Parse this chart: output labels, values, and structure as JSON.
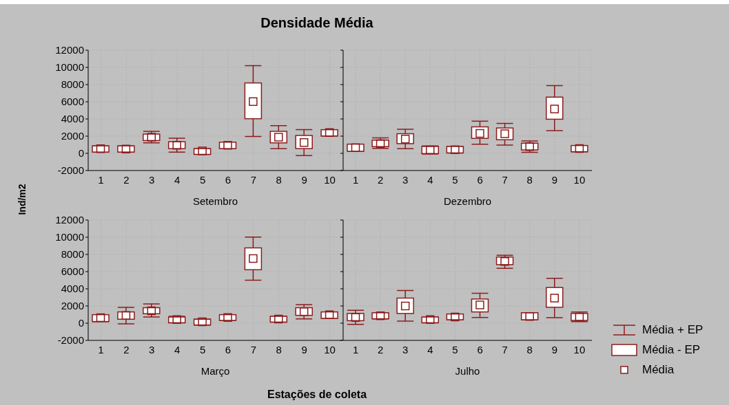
{
  "chart_data": [
    {
      "type": "box",
      "title": "Densidade Média",
      "ylabel": "Ind/m2",
      "xlabel": "Setembro",
      "annotations": [
        "Estações de coleta"
      ],
      "color": "#8c1c1c",
      "grid": true,
      "ylim": [
        -2000,
        12000
      ],
      "yticks": [
        -2000,
        0,
        2000,
        4000,
        6000,
        8000,
        10000,
        12000
      ],
      "categories": [
        "1",
        "2",
        "3",
        "4",
        "5",
        "6",
        "7",
        "8",
        "9",
        "10"
      ],
      "boxes": [
        {
          "low": 150,
          "q1": 150,
          "median": 550,
          "q3": 870,
          "high": 870
        },
        {
          "low": 150,
          "q1": 150,
          "median": 500,
          "q3": 870,
          "high": 870
        },
        {
          "low": 1220,
          "q1": 1490,
          "median": 1890,
          "q3": 2240,
          "high": 2560
        },
        {
          "low": 150,
          "q1": 550,
          "median": 950,
          "q3": 1350,
          "high": 1760
        },
        {
          "low": -120,
          "q1": -120,
          "median": 280,
          "q3": 550,
          "high": 550
        },
        {
          "low": 550,
          "q1": 550,
          "median": 950,
          "q3": 1300,
          "high": 1300
        },
        {
          "low": 1970,
          "q1": 4030,
          "median": 6020,
          "q3": 8190,
          "high": 10200
        },
        {
          "low": 550,
          "q1": 1220,
          "median": 1890,
          "q3": 2560,
          "high": 3230
        },
        {
          "low": -250,
          "q1": 550,
          "median": 1270,
          "q3": 2080,
          "high": 2770
        },
        {
          "low": 2020,
          "q1": 2020,
          "median": 2420,
          "q3": 2750,
          "high": 2750
        }
      ]
    },
    {
      "type": "box",
      "xlabel": "Dezembro",
      "color": "#8c1c1c",
      "grid": true,
      "tick_labels": "x",
      "ylim": [
        -2000,
        12000
      ],
      "yticks": [
        -2000,
        0,
        2000,
        4000,
        6000,
        8000,
        10000,
        12000
      ],
      "categories": [
        "1",
        "2",
        "3",
        "4",
        "5",
        "6",
        "7",
        "8",
        "9",
        "10"
      ],
      "boxes": [
        {
          "low": 240,
          "q1": 240,
          "median": 670,
          "q3": 1070,
          "high": 1070
        },
        {
          "low": 590,
          "q1": 780,
          "median": 1130,
          "q3": 1530,
          "high": 1800
        },
        {
          "low": 540,
          "q1": 1130,
          "median": 1660,
          "q3": 2280,
          "high": 2810
        },
        {
          "low": -80,
          "q1": -30,
          "median": 400,
          "q3": 800,
          "high": 860
        },
        {
          "low": 50,
          "q1": 50,
          "median": 430,
          "q3": 800,
          "high": 800
        },
        {
          "low": 1070,
          "q1": 1740,
          "median": 2330,
          "q3": 3080,
          "high": 3750
        },
        {
          "low": 960,
          "q1": 1580,
          "median": 2280,
          "q3": 2950,
          "high": 3480
        },
        {
          "low": 130,
          "q1": 400,
          "median": 780,
          "q3": 1180,
          "high": 1450
        },
        {
          "low": 2650,
          "q1": 3970,
          "median": 5170,
          "q3": 6540,
          "high": 7880
        },
        {
          "low": 190,
          "q1": 190,
          "median": 560,
          "q3": 910,
          "high": 910
        }
      ]
    },
    {
      "type": "box",
      "xlabel": "Março",
      "color": "#8c1c1c",
      "grid": true,
      "ylim": [
        -2000,
        12000
      ],
      "yticks": [
        -2000,
        0,
        2000,
        4000,
        6000,
        8000,
        10000,
        12000
      ],
      "categories": [
        "1",
        "2",
        "3",
        "4",
        "5",
        "6",
        "7",
        "8",
        "9",
        "10"
      ],
      "boxes": [
        {
          "low": 190,
          "q1": 190,
          "median": 640,
          "q3": 990,
          "high": 990
        },
        {
          "low": -80,
          "q1": 460,
          "median": 910,
          "q3": 1310,
          "high": 1850
        },
        {
          "low": 720,
          "q1": 1100,
          "median": 1450,
          "q3": 1800,
          "high": 2250
        },
        {
          "low": 50,
          "q1": 50,
          "median": 430,
          "q3": 720,
          "high": 800
        },
        {
          "low": -210,
          "q1": -210,
          "median": 160,
          "q3": 460,
          "high": 460
        },
        {
          "low": 320,
          "q1": 320,
          "median": 670,
          "q3": 990,
          "high": 990
        },
        {
          "low": 5010,
          "q1": 6220,
          "median": 7530,
          "q3": 8760,
          "high": 10020
        },
        {
          "low": 130,
          "q1": 130,
          "median": 480,
          "q3": 800,
          "high": 800
        },
        {
          "low": 510,
          "q1": 910,
          "median": 1340,
          "q3": 1800,
          "high": 2170
        },
        {
          "low": 560,
          "q1": 560,
          "median": 990,
          "q3": 1310,
          "high": 1310
        }
      ]
    },
    {
      "type": "box",
      "xlabel": "Julho",
      "color": "#8c1c1c",
      "grid": true,
      "tick_labels": "x",
      "annotations": [
        "Média + EP",
        "Média - EP",
        "Média"
      ],
      "ylim": [
        -2000,
        12000
      ],
      "yticks": [
        -2000,
        0,
        2000,
        4000,
        6000,
        8000,
        10000,
        12000
      ],
      "categories": [
        "1",
        "2",
        "3",
        "4",
        "5",
        "6",
        "7",
        "8",
        "9",
        "10"
      ],
      "boxes": [
        {
          "low": -130,
          "q1": 290,
          "median": 670,
          "q3": 1130,
          "high": 1500
        },
        {
          "low": 510,
          "q1": 510,
          "median": 860,
          "q3": 1210,
          "high": 1210
        },
        {
          "low": 240,
          "q1": 1130,
          "median": 2010,
          "q3": 2920,
          "high": 3810
        },
        {
          "low": 50,
          "q1": 50,
          "median": 430,
          "q3": 720,
          "high": 720
        },
        {
          "low": 400,
          "q1": 400,
          "median": 720,
          "q3": 1070,
          "high": 1070
        },
        {
          "low": 670,
          "q1": 1310,
          "median": 2120,
          "q3": 2810,
          "high": 3480
        },
        {
          "low": 6380,
          "q1": 6810,
          "median": 7180,
          "q3": 7690,
          "high": 7900
        },
        {
          "low": 400,
          "q1": 400,
          "median": 780,
          "q3": 1210,
          "high": 1210
        },
        {
          "low": 640,
          "q1": 1850,
          "median": 2920,
          "q3": 4150,
          "high": 5230
        },
        {
          "low": 190,
          "q1": 320,
          "median": 720,
          "q3": 1130,
          "high": 1310
        }
      ]
    }
  ]
}
